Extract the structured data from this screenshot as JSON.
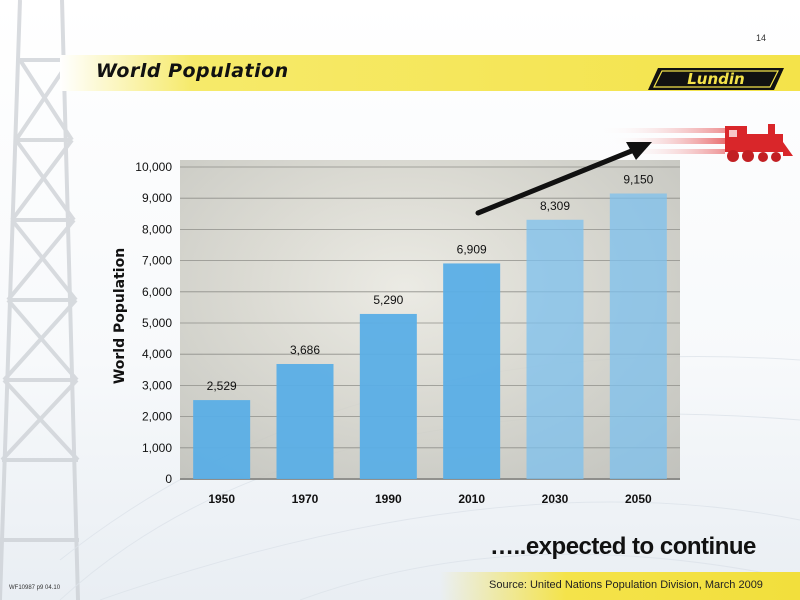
{
  "slide": {
    "number": "14",
    "title": "World Population",
    "logo_text": "Lundin",
    "caption": "…..expected to continue",
    "source": "Source: United Nations Population Division, March 2009",
    "doc_ref": "WF10987 p9 04.10"
  },
  "colors": {
    "bar": "#5aaee6",
    "bar_projected": "#7cc0ee",
    "title_band": "#f4e34a",
    "arrow": "#111111",
    "train": "#d9262a"
  },
  "chart_data": {
    "type": "bar",
    "categories": [
      "1950",
      "1970",
      "1990",
      "2010",
      "2030",
      "2050"
    ],
    "values": [
      2529,
      3686,
      5290,
      6909,
      8309,
      9150
    ],
    "data_labels": [
      "2,529",
      "3,686",
      "5,290",
      "6,909",
      "8,309",
      "9,150"
    ],
    "ylabel": "World Population",
    "xlabel": "",
    "ylim": [
      0,
      10000
    ],
    "yticks": [
      0,
      1000,
      2000,
      3000,
      4000,
      5000,
      6000,
      7000,
      8000,
      9000,
      10000
    ],
    "ytick_labels": [
      "0",
      "1,000",
      "2,000",
      "3,000",
      "4,000",
      "5,000",
      "6,000",
      "7,000",
      "8,000",
      "9,000",
      "10,000"
    ],
    "grid": true,
    "legend": "none",
    "projected_from_index": 4
  }
}
